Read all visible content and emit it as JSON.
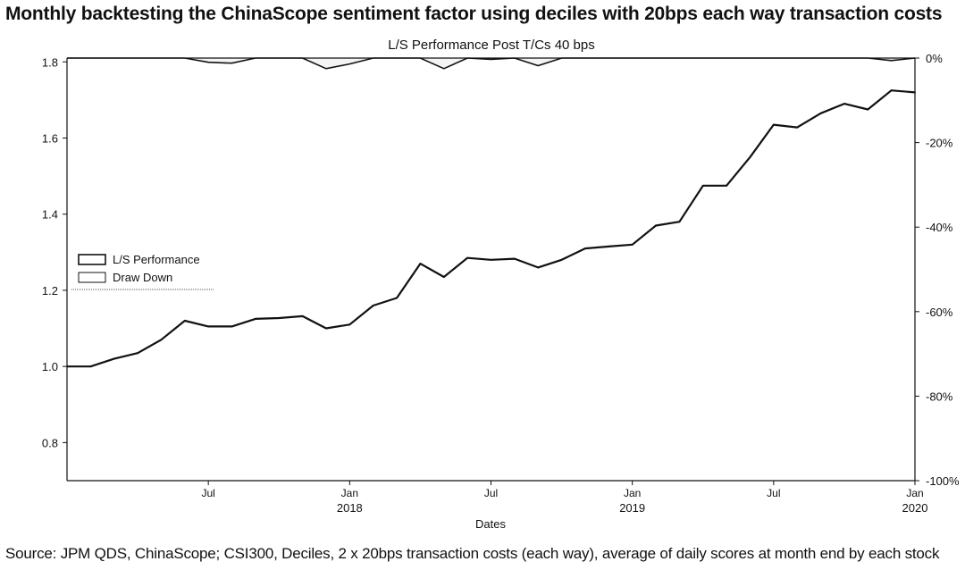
{
  "headline": "Monthly backtesting the ChinaScope sentiment factor using deciles with 20bps each way transaction costs",
  "source": "Source: JPM QDS, ChinaScope; CSI300, Deciles, 2 x 20bps transaction costs (each way), average of daily scores at month end by each stock",
  "chart_data": {
    "type": "line",
    "title": "L/S Performance Post T/Cs 40 bps",
    "xlabel": "Dates",
    "ylabel": "",
    "ylim": [
      0.7,
      1.81
    ],
    "y2lim": [
      -100,
      0
    ],
    "y_ticks": [
      "0.8",
      "1.0",
      "1.2",
      "1.4",
      "1.6",
      "1.8"
    ],
    "y2_ticks": [
      "0%",
      "-20%",
      "-40%",
      "-60%",
      "-80%",
      "-100%"
    ],
    "x_ticks": [
      {
        "label": "Jul",
        "year": ""
      },
      {
        "label": "Jan",
        "year": "2018"
      },
      {
        "label": "Jul",
        "year": ""
      },
      {
        "label": "Jan",
        "year": "2019"
      },
      {
        "label": "Jul",
        "year": ""
      },
      {
        "label": "Jan",
        "year": "2020"
      }
    ],
    "legend": {
      "placement": "middle-left",
      "entries": [
        "L/S Performance",
        "Draw Down"
      ]
    },
    "grid": false,
    "x": [
      "2017-01",
      "2017-02",
      "2017-03",
      "2017-04",
      "2017-05",
      "2017-06",
      "2017-07",
      "2017-08",
      "2017-09",
      "2017-10",
      "2017-11",
      "2017-12",
      "2018-01",
      "2018-02",
      "2018-03",
      "2018-04",
      "2018-05",
      "2018-06",
      "2018-07",
      "2018-08",
      "2018-09",
      "2018-10",
      "2018-11",
      "2018-12",
      "2019-01",
      "2019-02",
      "2019-03",
      "2019-04",
      "2019-05",
      "2019-06",
      "2019-07",
      "2019-08",
      "2019-09",
      "2019-10",
      "2019-11",
      "2019-12",
      "2020-01"
    ],
    "series": [
      {
        "name": "L/S Performance",
        "axis": "left",
        "values": [
          1.0,
          1.0,
          1.02,
          1.035,
          1.07,
          1.12,
          1.105,
          1.105,
          1.125,
          1.127,
          1.132,
          1.1,
          1.11,
          1.16,
          1.18,
          1.27,
          1.235,
          1.285,
          1.28,
          1.283,
          1.26,
          1.28,
          1.31,
          1.315,
          1.32,
          1.37,
          1.38,
          1.475,
          1.475,
          1.55,
          1.635,
          1.628,
          1.665,
          1.69,
          1.675,
          1.725,
          1.72
        ]
      },
      {
        "name": "Draw Down",
        "axis": "right",
        "values": [
          0,
          0,
          0,
          0,
          0,
          0,
          -1.0,
          -1.2,
          0,
          0,
          0,
          -2.5,
          -1.4,
          0,
          0,
          0,
          -2.5,
          0,
          -0.3,
          0,
          -1.8,
          0,
          0,
          0,
          0,
          0,
          0,
          0,
          0,
          0,
          0,
          0,
          0,
          0,
          0,
          -0.6,
          0
        ]
      }
    ]
  }
}
